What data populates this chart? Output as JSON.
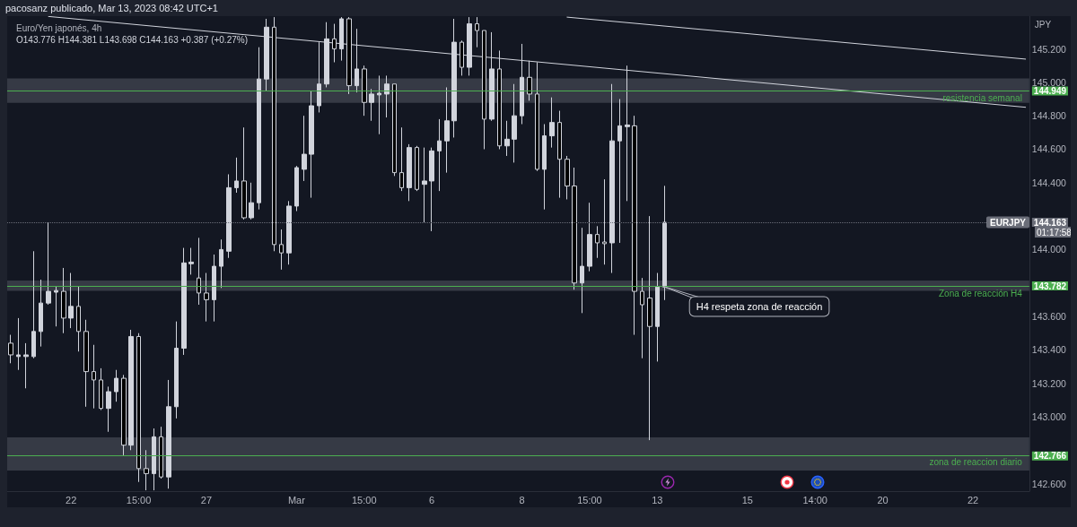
{
  "chart_data": {
    "type": "candlestick",
    "title": "Euro/Yen japonés, 4h",
    "subtitle": "O143.776 H144.381 L143.698 C144.163 +0.387 (+0.27%)",
    "ylabel": "JPY",
    "annotations": [
      "pacosanz publicado, Mar 13, 2023 08:42 UTC+1",
      {
        "text": "H4 respeta zona de reacción",
        "y": 143.78
      },
      "01:17:58"
    ],
    "categories": [
      null,
      null,
      null,
      null,
      null,
      null,
      null,
      null,
      "22",
      null,
      null,
      null,
      null,
      null,
      null,
      null,
      null,
      "15:00",
      null,
      null,
      null,
      null,
      null,
      null,
      null,
      null,
      "27",
      null,
      null,
      null,
      null,
      null,
      null,
      null,
      null,
      null,
      null,
      null,
      "Mar",
      null,
      null,
      null,
      null,
      null,
      null,
      null,
      null,
      "15:00",
      null,
      null,
      null,
      null,
      null,
      null,
      null,
      null,
      "6",
      null,
      null,
      null,
      null,
      null,
      null,
      null,
      null,
      null,
      null,
      null,
      "8",
      null,
      null,
      null,
      null,
      null,
      null,
      null,
      null,
      "15:00",
      null,
      null,
      null,
      null,
      null,
      null,
      null,
      null,
      "13",
      null,
      null,
      null,
      null,
      null,
      null,
      null,
      null,
      null,
      null,
      null,
      "15",
      null,
      null,
      null,
      null,
      null,
      null,
      null,
      null,
      "14:00",
      null,
      null,
      null,
      null,
      null,
      null,
      null,
      null,
      "20",
      null,
      null,
      null,
      null,
      null,
      null,
      null,
      null,
      null,
      null,
      null,
      "22",
      null,
      null,
      null,
      null,
      null,
      null,
      null
    ],
    "ohlc": [
      [
        143.44,
        143.49,
        143.32,
        143.37
      ],
      [
        143.36,
        143.59,
        143.28,
        143.37
      ],
      [
        143.36,
        143.44,
        143.17,
        143.37
      ],
      [
        143.36,
        143.99,
        143.35,
        143.51
      ],
      [
        143.51,
        143.82,
        143.42,
        143.68
      ],
      [
        143.68,
        144.16,
        143.67,
        143.75
      ],
      [
        143.745,
        143.78,
        143.54,
        143.755
      ],
      [
        143.75,
        143.89,
        143.5,
        143.59
      ],
      [
        143.59,
        143.86,
        143.53,
        143.66
      ],
      [
        143.66,
        143.78,
        143.39,
        143.51
      ],
      [
        143.51,
        143.58,
        143.06,
        143.27
      ],
      [
        143.27,
        143.43,
        143.05,
        143.22
      ],
      [
        143.22,
        143.29,
        143.04,
        143.05
      ],
      [
        143.05,
        143.18,
        142.91,
        143.15
      ],
      [
        143.15,
        143.28,
        143.09,
        143.23
      ],
      [
        143.23,
        143.25,
        142.77,
        142.83
      ],
      [
        142.83,
        143.52,
        142.8,
        143.48
      ],
      [
        143.48,
        143.5,
        142.61,
        142.69
      ],
      [
        142.69,
        142.8,
        142.56,
        142.66
      ],
      [
        142.66,
        142.93,
        142.56,
        142.88
      ],
      [
        142.88,
        142.94,
        142.63,
        142.64
      ],
      [
        142.64,
        143.22,
        142.57,
        143.06
      ],
      [
        143.06,
        143.57,
        142.99,
        143.41
      ],
      [
        143.41,
        144.01,
        143.37,
        143.92
      ],
      [
        143.915,
        144.01,
        143.85,
        143.925
      ],
      [
        143.83,
        144.07,
        143.67,
        143.74
      ],
      [
        143.74,
        143.86,
        143.57,
        143.7
      ],
      [
        143.7,
        143.97,
        143.57,
        143.9
      ],
      [
        143.9,
        144.06,
        143.77,
        144
      ],
      [
        143.99,
        144.45,
        143.95,
        144.37
      ],
      [
        144.37,
        144.55,
        144.34,
        144.41
      ],
      [
        144.41,
        144.73,
        144.18,
        144.19
      ],
      [
        144.19,
        144.4,
        144.18,
        144.28
      ],
      [
        144.28,
        145.21,
        144.24,
        145.02
      ],
      [
        145.02,
        145.38,
        144.95,
        145.33
      ],
      [
        145.33,
        145.39,
        143.99,
        144.03
      ],
      [
        144.03,
        144.12,
        143.88,
        143.98
      ],
      [
        143.98,
        144.29,
        143.91,
        144.26
      ],
      [
        144.26,
        144.5,
        144.23,
        144.49
      ],
      [
        144.48,
        144.8,
        144.41,
        144.57
      ],
      [
        144.57,
        144.95,
        144.31,
        144.86
      ],
      [
        144.86,
        145.24,
        144.82,
        144.99
      ],
      [
        144.99,
        145.36,
        144.97,
        145.26
      ],
      [
        145.26,
        145.35,
        145.12,
        145.2
      ],
      [
        145.2,
        145.39,
        145.13,
        145.38
      ],
      [
        145.38,
        145.39,
        144.93,
        144.98
      ],
      [
        144.98,
        145.32,
        144.94,
        145.08
      ],
      [
        145.08,
        145.1,
        144.8,
        144.88
      ],
      [
        144.88,
        144.96,
        144.77,
        144.93
      ],
      [
        144.925,
        145.04,
        144.69,
        144.935
      ],
      [
        144.93,
        145.04,
        144.79,
        144.99
      ],
      [
        144.99,
        144.99,
        144.44,
        144.46
      ],
      [
        144.46,
        144.73,
        144.35,
        144.37
      ],
      [
        144.37,
        144.63,
        144.29,
        144.61
      ],
      [
        144.61,
        144.62,
        144.35,
        144.36
      ],
      [
        144.39,
        144.61,
        144.16,
        144.41
      ],
      [
        144.41,
        144.61,
        144.11,
        144.59
      ],
      [
        144.59,
        144.78,
        144.35,
        144.65
      ],
      [
        144.65,
        144.97,
        144.46,
        144.77
      ],
      [
        144.77,
        145.38,
        144.67,
        145.24
      ],
      [
        145.24,
        145.25,
        145.04,
        145.09
      ],
      [
        145.09,
        145.39,
        145.04,
        145.35
      ],
      [
        145.35,
        145.39,
        145.21,
        145.31
      ],
      [
        145.31,
        145.31,
        144.6,
        144.78
      ],
      [
        144.78,
        145.3,
        144.77,
        145.08
      ],
      [
        145.08,
        145.19,
        144.6,
        144.62
      ],
      [
        144.62,
        144.77,
        144.56,
        144.66
      ],
      [
        144.66,
        144.99,
        144.52,
        144.8
      ],
      [
        144.8,
        145.23,
        144.75,
        145.03
      ],
      [
        145.03,
        145.13,
        144.89,
        144.93
      ],
      [
        144.93,
        145.12,
        144.47,
        144.48
      ],
      [
        144.48,
        144.75,
        144.24,
        144.68
      ],
      [
        144.68,
        144.91,
        144.61,
        144.76
      ],
      [
        144.76,
        144.83,
        144.31,
        144.54
      ],
      [
        144.54,
        144.56,
        144.3,
        144.38
      ],
      [
        144.38,
        144.49,
        143.76,
        143.8
      ],
      [
        143.8,
        144.13,
        143.62,
        143.9
      ],
      [
        143.9,
        144.28,
        143.87,
        144.09
      ],
      [
        144.09,
        144.14,
        143.95,
        144.04
      ],
      [
        144.045,
        144.42,
        143.91,
        144.035
      ],
      [
        144.04,
        144.99,
        143.86,
        144.65
      ],
      [
        144.65,
        144.9,
        144.04,
        144.74
      ],
      [
        144.735,
        145.1,
        144.29,
        144.745
      ],
      [
        144.74,
        144.8,
        143.49,
        143.75
      ],
      [
        143.75,
        143.83,
        143.35,
        143.67
      ],
      [
        143.71,
        144.2,
        142.86,
        143.54
      ],
      [
        143.54,
        143.86,
        143.33,
        143.776
      ],
      [
        143.776,
        144.381,
        143.698,
        144.163
      ],
      null,
      null,
      null,
      null,
      null,
      null,
      null,
      null,
      null,
      null,
      null,
      null,
      null,
      null,
      null,
      null,
      null,
      null,
      null,
      null,
      null,
      null,
      null,
      null,
      null,
      null,
      null,
      null,
      null,
      null,
      null,
      null,
      null,
      null,
      null,
      null,
      null,
      null,
      null,
      null,
      null,
      null,
      null,
      null,
      null,
      null,
      null,
      null
    ],
    "series": [
      {
        "type": "line",
        "color": "#d1d4dc",
        "values": [
          null,
          null,
          null,
          null,
          null,
          145.394,
          null,
          null,
          null,
          null,
          null,
          null,
          null,
          null,
          null,
          null,
          null,
          null,
          null,
          null,
          null,
          null,
          null,
          null,
          null,
          null,
          null,
          null,
          null,
          null,
          null,
          null,
          null,
          null,
          null,
          null,
          null,
          null,
          null,
          null,
          null,
          null,
          null,
          null,
          null,
          null,
          null,
          null,
          null,
          null,
          null,
          null,
          null,
          null,
          null,
          null,
          null,
          null,
          null,
          null,
          null,
          null,
          null,
          null,
          null,
          null,
          null,
          null,
          null,
          null,
          null,
          null,
          null,
          null,
          null,
          null,
          null,
          null,
          null,
          null,
          null,
          null,
          null,
          null,
          null,
          null,
          null,
          null,
          null,
          null,
          null,
          null,
          null,
          null,
          null,
          null,
          null,
          null,
          null,
          null,
          null,
          null,
          null,
          null,
          null,
          null,
          null,
          null,
          null,
          null,
          null,
          null,
          null,
          null,
          null,
          null,
          null,
          null,
          null,
          null,
          null,
          null,
          null,
          null,
          null,
          null,
          null,
          null,
          null,
          null,
          null,
          null,
          null,
          null,
          null,
          144.851
        ]
      },
      {
        "type": "line",
        "color": "#d1d4dc",
        "values": [
          null,
          null,
          null,
          null,
          null,
          null,
          null,
          null,
          null,
          null,
          null,
          null,
          null,
          null,
          null,
          null,
          null,
          null,
          null,
          null,
          null,
          null,
          null,
          null,
          null,
          null,
          null,
          null,
          null,
          null,
          null,
          null,
          null,
          null,
          null,
          null,
          null,
          null,
          null,
          null,
          null,
          null,
          null,
          null,
          null,
          null,
          null,
          null,
          null,
          null,
          null,
          null,
          null,
          null,
          null,
          null,
          null,
          null,
          null,
          null,
          null,
          null,
          null,
          null,
          null,
          null,
          null,
          null,
          null,
          null,
          null,
          null,
          null,
          null,
          145.39,
          null,
          null,
          null,
          null,
          null,
          null,
          null,
          null,
          null,
          null,
          null,
          null,
          null,
          null,
          null,
          null,
          null,
          null,
          null,
          null,
          null,
          null,
          null,
          null,
          null,
          null,
          null,
          null,
          null,
          null,
          null,
          null,
          null,
          null,
          null,
          null,
          null,
          null,
          null,
          null,
          null,
          null,
          null,
          null,
          null,
          null,
          null,
          null,
          null,
          null,
          null,
          null,
          null,
          null,
          null,
          null,
          null,
          null,
          null,
          null,
          145.139
        ]
      }
    ],
    "ylim": [
      142.555,
      145.396
    ],
    "yticks": [
      {
        "value": 142.6,
        "label": "142.600"
      },
      142.766,
      {
        "value": 143,
        "label": "143.000"
      },
      {
        "value": 143.2,
        "label": "143.200"
      },
      {
        "value": 143.4,
        "label": "143.400"
      },
      {
        "value": 143.6,
        "label": "143.600"
      },
      143.782,
      {
        "value": 144,
        "label": "144.000"
      },
      144.163,
      {
        "value": 144.4,
        "label": "144.400"
      },
      {
        "value": 144.6,
        "label": "144.600"
      },
      {
        "value": 144.8,
        "label": "144.800"
      },
      144.949,
      {
        "value": 145,
        "label": "145.000"
      },
      {
        "value": 145.2,
        "label": "145.200"
      }
    ],
    "ref_lines": [
      {
        "axis": "y",
        "value": 144.949,
        "label": "resistencia semanal",
        "color": "#4caf50"
      },
      {
        "axis": "y",
        "value": 143.782,
        "label": "Zona de reacción H4",
        "color": "#4caf50"
      },
      {
        "axis": "y",
        "value": 142.766,
        "label": "zona de reaccion diario",
        "color": "#4caf50"
      },
      {
        "axis": "y",
        "value": 144.163,
        "label": "EURJPY",
        "color": "#6a6d78",
        "line_style": "dotted"
      }
    ],
    "bands": [
      {
        "axis": "y",
        "from": 144.878,
        "to": 145.023,
        "color": "#363a45"
      },
      {
        "axis": "y",
        "from": 143.753,
        "to": 143.815,
        "color": "#363a45"
      },
      {
        "axis": "y",
        "from": 142.678,
        "to": 142.876,
        "color": "#363a45"
      }
    ]
  }
}
